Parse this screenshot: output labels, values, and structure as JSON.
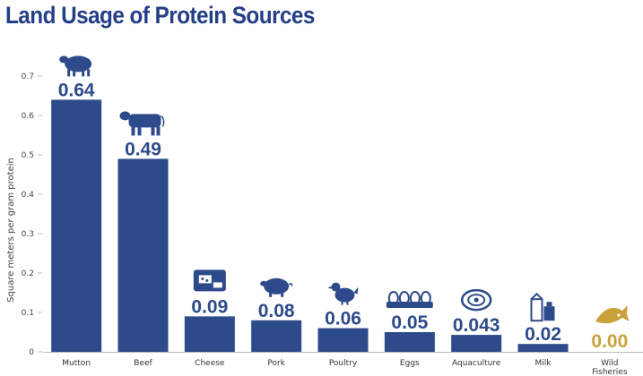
{
  "title": "Land Usage of Protein Sources",
  "colors": {
    "bar": "#2d4a8a",
    "highlight": "#c9a23c",
    "title": "#243f87",
    "axis": "#bbbbbb"
  },
  "chart_data": {
    "type": "bar",
    "title": "Land Usage of Protein Sources",
    "xlabel": "",
    "ylabel": "Square meters per gram protein",
    "ylim": [
      0,
      0.7
    ],
    "yticks": [
      "0",
      "0.1",
      "0.2",
      "0.3",
      "0.4",
      "0.5",
      "0.6",
      "0.7"
    ],
    "grid": false,
    "categories": [
      "Mutton",
      "Beef",
      "Cheese",
      "Pork",
      "Poultry",
      "Eggs",
      "Aquaculture",
      "Milk",
      "Wild Fisheries"
    ],
    "values": [
      0.64,
      0.49,
      0.09,
      0.08,
      0.06,
      0.05,
      0.043,
      0.02,
      0.0
    ],
    "value_labels": [
      "0.64",
      "0.49",
      "0.09",
      "0.08",
      "0.06",
      "0.05",
      "0.043",
      "0.02",
      "0.00"
    ],
    "icons": [
      "sheep-icon",
      "cow-icon",
      "cheese-icon",
      "pig-icon",
      "chicken-icon",
      "eggs-icon",
      "oyster-icon",
      "milk-icon",
      "fish-icon"
    ]
  }
}
